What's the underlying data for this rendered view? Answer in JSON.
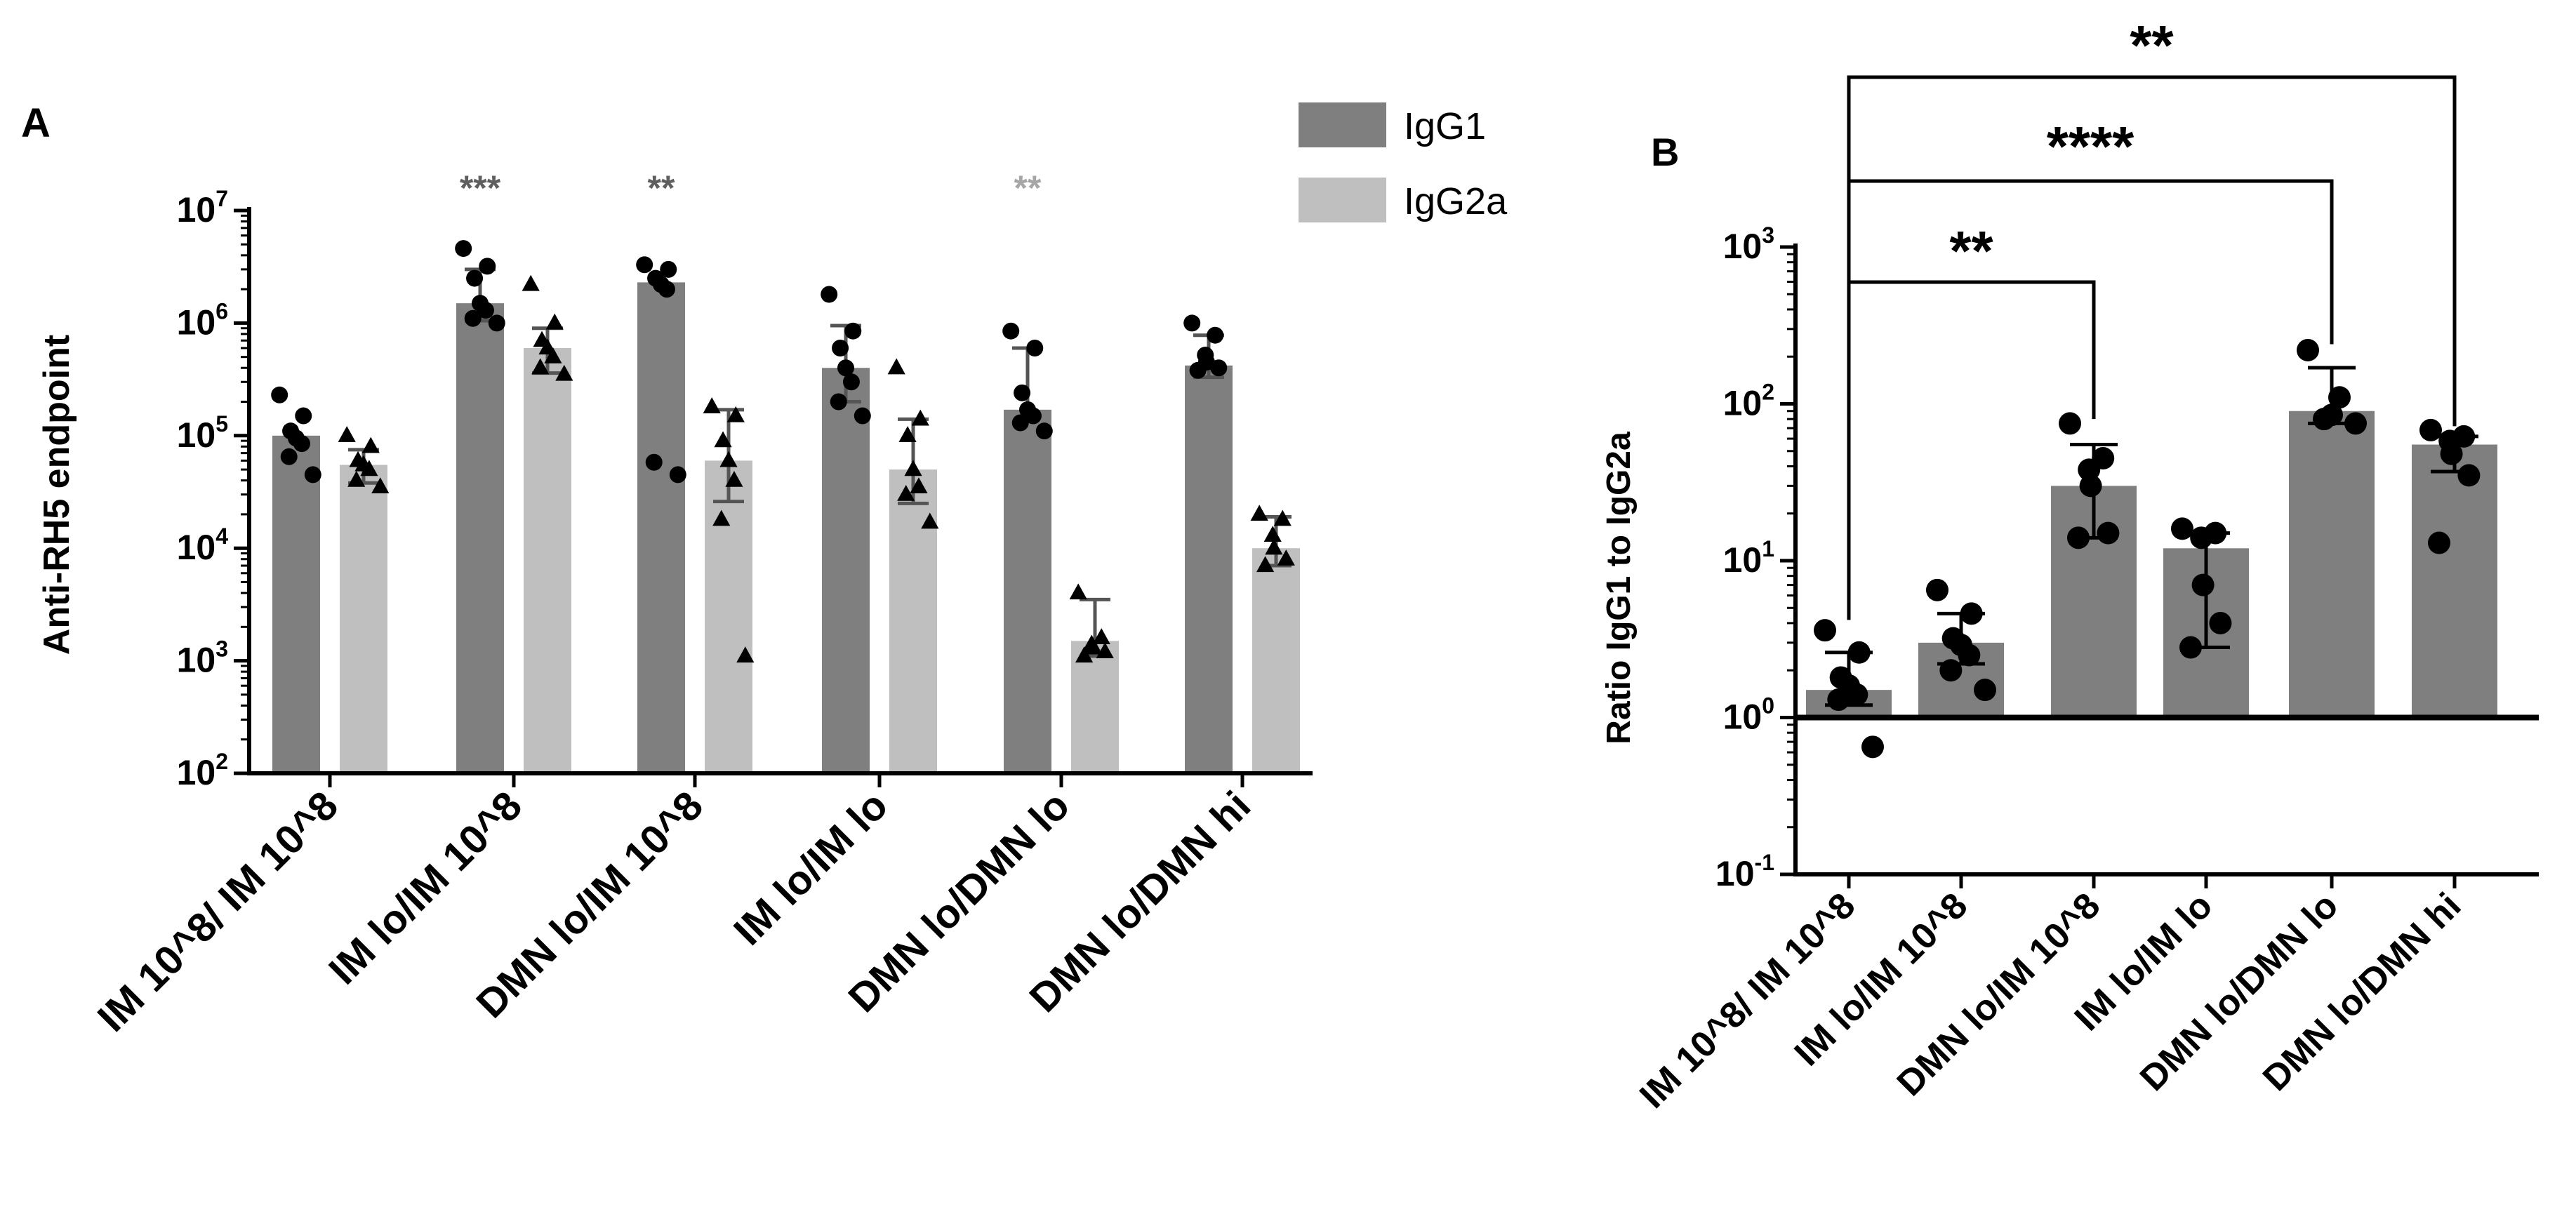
{
  "chart_data": [
    {
      "type": "bar",
      "panel_label": "A",
      "title": "",
      "ylabel": "Anti-RH5 endpoint",
      "xlabel": "",
      "yscale": "log10",
      "ylim": [
        100,
        10000000
      ],
      "ytick_labels": [
        {
          "exp": 2,
          "base": "10",
          "pow": "2"
        },
        {
          "exp": 3,
          "base": "10",
          "pow": "3"
        },
        {
          "exp": 4,
          "base": "10",
          "pow": "4"
        },
        {
          "exp": 5,
          "base": "10",
          "pow": "5"
        },
        {
          "exp": 6,
          "base": "10",
          "pow": "6"
        },
        {
          "exp": 7,
          "base": "10",
          "pow": "7"
        }
      ],
      "categories": [
        "IM 10^8/ IM 10^8",
        "IM lo/IM 10^8",
        "DMN lo/IM 10^8",
        "IM lo/IM lo",
        "DMN lo/DMN lo",
        "DMN lo/DMN hi"
      ],
      "legend": {
        "position": "top-right",
        "entries": [
          {
            "name": "IgG1",
            "color": "#7f7f7f"
          },
          {
            "name": "IgG2a",
            "color": "#bfbfbf"
          }
        ]
      },
      "series": [
        {
          "name": "IgG1",
          "color": "#7f7f7f",
          "marker": "circle",
          "values": [
            100000,
            1500000,
            2300000,
            400000,
            170000,
            420000
          ],
          "error_low": [
            null,
            1050000,
            null,
            200000,
            null,
            330000
          ],
          "error_high": [
            null,
            3000000,
            null,
            950000,
            600000,
            780000
          ],
          "points": [
            [
              230000,
              150000,
              110000,
              95000,
              85000,
              65000,
              45000
            ],
            [
              4600000,
              3200000,
              2500000,
              1500000,
              1300000,
              1100000,
              1000000
            ],
            [
              3300000,
              3000000,
              2500000,
              2200000,
              2000000,
              58000,
              45000
            ],
            [
              1800000,
              850000,
              600000,
              400000,
              300000,
              200000,
              150000
            ],
            [
              850000,
              600000,
              240000,
              170000,
              150000,
              130000,
              110000
            ],
            [
              1000000,
              780000,
              520000,
              450000,
              400000,
              380000
            ]
          ]
        },
        {
          "name": "IgG2a",
          "color": "#bfbfbf",
          "marker": "triangle",
          "values": [
            55000,
            600000,
            60000,
            50000,
            1500,
            10000
          ],
          "error_low": [
            38000,
            360000,
            26000,
            25000,
            1100,
            7000
          ],
          "error_high": [
            75000,
            900000,
            170000,
            140000,
            3500,
            19000
          ],
          "points": [
            [
              100000,
              80000,
              60000,
              55000,
              50000,
              40000,
              35000
            ],
            [
              2200000,
              1000000,
              700000,
              600000,
              500000,
              400000,
              350000
            ],
            [
              180000,
              150000,
              90000,
              60000,
              40000,
              18000,
              1100
            ],
            [
              400000,
              140000,
              100000,
              50000,
              35000,
              30000,
              17000
            ],
            [
              4000,
              1600,
              1400,
              1300,
              1200,
              1100
            ],
            [
              20000,
              18000,
              13000,
              10000,
              8000,
              7000
            ]
          ]
        }
      ],
      "annotations": [
        {
          "category_index": 1,
          "text": "***",
          "color": "#5f5f5f"
        },
        {
          "category_index": 2,
          "text": "**",
          "color": "#5f5f5f"
        },
        {
          "category_index": 4,
          "text": "**",
          "color": "#a6a6a6"
        }
      ]
    },
    {
      "type": "bar",
      "panel_label": "B",
      "title": "",
      "ylabel": "Ratio IgG1 to IgG2a",
      "xlabel": "",
      "yscale": "log10",
      "ylim": [
        0.1,
        1000
      ],
      "baseline": 1,
      "ytick_labels": [
        {
          "exp": -1,
          "base": "10",
          "pow": "-1"
        },
        {
          "exp": 0,
          "base": "10",
          "pow": "0"
        },
        {
          "exp": 1,
          "base": "10",
          "pow": "1"
        },
        {
          "exp": 2,
          "base": "10",
          "pow": "2"
        },
        {
          "exp": 3,
          "base": "10",
          "pow": "3"
        }
      ],
      "categories": [
        "IM 10^8/ IM 10^8",
        "IM lo/IM 10^8",
        "DMN lo/IM 10^8",
        "IM lo/IM lo",
        "DMN lo/DMN lo",
        "DMN lo/DMN hi"
      ],
      "series": [
        {
          "name": "Ratio IgG1 to IgG2a",
          "color": "#7f7f7f",
          "marker": "circle",
          "values": [
            1.5,
            3,
            30,
            12,
            90,
            55
          ],
          "error_low": [
            1.2,
            2.2,
            14,
            2.8,
            75,
            37
          ],
          "error_high": [
            2.6,
            4.6,
            55,
            15,
            170,
            62
          ],
          "points": [
            [
              3.6,
              2.6,
              1.8,
              1.6,
              1.4,
              1.3,
              0.65
            ],
            [
              6.5,
              4.6,
              3.2,
              2.9,
              2.5,
              2,
              1.5
            ],
            [
              75,
              45,
              38,
              30,
              15,
              14
            ],
            [
              16,
              15,
              14,
              7,
              4,
              2.8
            ],
            [
              220,
              110,
              85,
              80,
              75
            ],
            [
              68,
              62,
              58,
              48,
              35,
              13
            ]
          ]
        }
      ],
      "significance": [
        {
          "from": 0,
          "to": 2,
          "text": "**"
        },
        {
          "from": 0,
          "to": 4,
          "text": "****"
        },
        {
          "from": 0,
          "to": 5,
          "text": "**"
        }
      ]
    }
  ]
}
